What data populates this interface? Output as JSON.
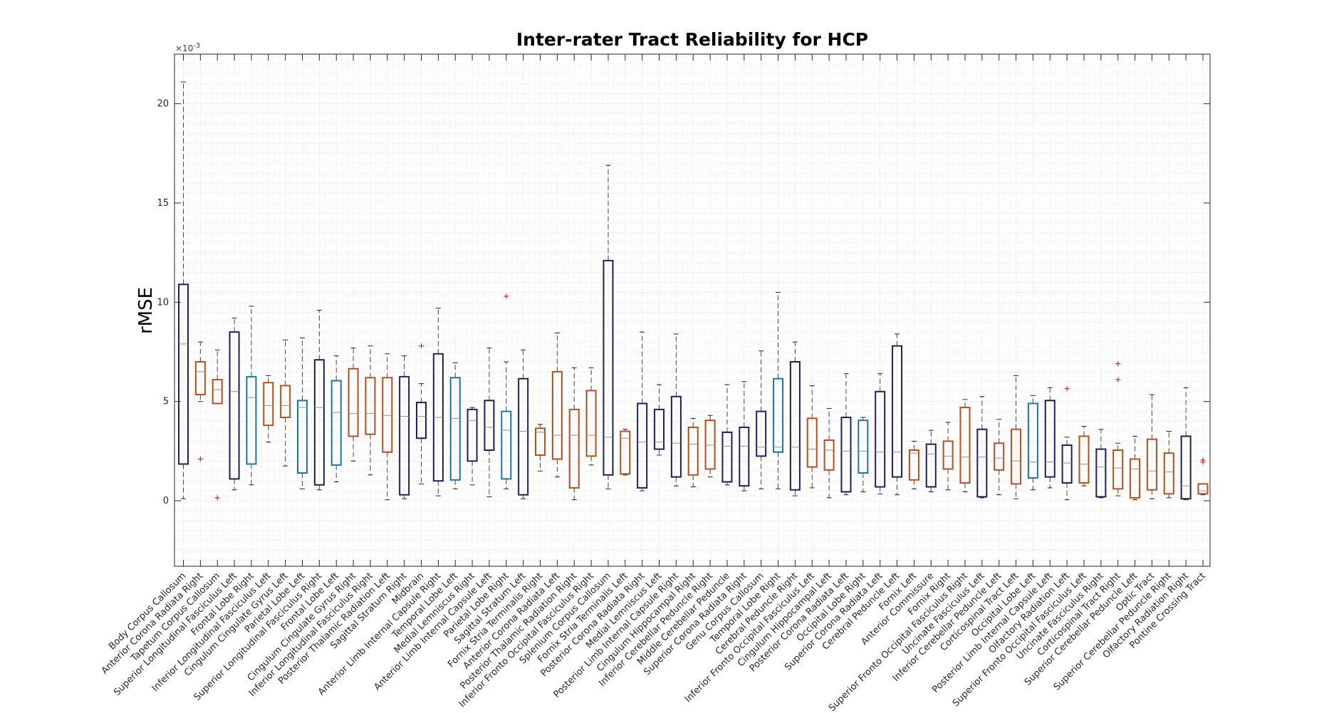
{
  "chart_data": {
    "type": "box",
    "title": "Inter-rater Tract Reliability for HCP",
    "xlabel": "",
    "ylabel": "rMSE",
    "y_exponent_label": "×10",
    "y_exponent": "-3",
    "ylim": [
      -3.3,
      22.5
    ],
    "yticks": [
      0,
      5,
      10,
      15,
      20
    ],
    "ytick_labels": [
      "0",
      "5",
      "10",
      "15",
      "20"
    ],
    "grid": "minor",
    "colors": {
      "navy": "#1f1f5e",
      "orange": "#b8501a",
      "teal": "#1a78a8",
      "outlier": "#e02020",
      "median": "#909090",
      "whisker": "#444444"
    },
    "categories": [
      {
        "label": "Body Corpus Callosum",
        "color": "navy",
        "wlo": 0.1,
        "q1": 1.85,
        "med": 7.9,
        "q3": 10.9,
        "whi": 21.1,
        "out": []
      },
      {
        "label": "Anterior Corona Radiata Right",
        "color": "orange",
        "wlo": 5.0,
        "q1": 5.35,
        "med": 6.5,
        "q3": 7.0,
        "whi": 8.0,
        "out": [
          2.1
        ]
      },
      {
        "label": "Tapetum Corpus Callosum",
        "color": "orange",
        "wlo": 4.9,
        "q1": 4.9,
        "med": 5.6,
        "q3": 6.1,
        "whi": 7.6,
        "out": [
          0.15
        ]
      },
      {
        "label": "Superior Longitudinal Fasciculus Left",
        "color": "navy",
        "wlo": 0.55,
        "q1": 1.1,
        "med": 5.5,
        "q3": 8.5,
        "whi": 9.2,
        "out": []
      },
      {
        "label": "Frontal Lobe Right",
        "color": "teal",
        "wlo": 0.8,
        "q1": 1.85,
        "med": 5.2,
        "q3": 6.25,
        "whi": 9.8,
        "out": []
      },
      {
        "label": "Inferior Longitudinal Fasciculus Left",
        "color": "orange",
        "wlo": 2.95,
        "q1": 3.8,
        "med": 4.8,
        "q3": 5.95,
        "whi": 6.3,
        "out": []
      },
      {
        "label": "Cingulum Cingulate Gyrus Left",
        "color": "orange",
        "wlo": 1.75,
        "q1": 4.2,
        "med": 4.8,
        "q3": 5.8,
        "whi": 8.1,
        "out": []
      },
      {
        "label": "Parietal Lobe Left",
        "color": "teal",
        "wlo": 0.6,
        "q1": 1.4,
        "med": 4.7,
        "q3": 5.05,
        "whi": 8.2,
        "out": []
      },
      {
        "label": "Superior Longitudinal Fasciculus Right",
        "color": "navy",
        "wlo": 0.55,
        "q1": 0.8,
        "med": 4.7,
        "q3": 7.1,
        "whi": 9.6,
        "out": []
      },
      {
        "label": "Frontal Lobe Left",
        "color": "teal",
        "wlo": 0.95,
        "q1": 1.8,
        "med": 4.45,
        "q3": 6.05,
        "whi": 7.3,
        "out": []
      },
      {
        "label": "Cingulum Cingulate Gyrus Right",
        "color": "orange",
        "wlo": 2.0,
        "q1": 3.25,
        "med": 4.4,
        "q3": 6.65,
        "whi": 7.7,
        "out": []
      },
      {
        "label": "Inferior Longitudinal Fasciculus Right",
        "color": "orange",
        "wlo": 1.3,
        "q1": 3.35,
        "med": 4.4,
        "q3": 6.2,
        "whi": 7.8,
        "out": []
      },
      {
        "label": "Posterior Thalamic Radiation Left",
        "color": "orange",
        "wlo": 0.05,
        "q1": 2.45,
        "med": 4.3,
        "q3": 6.2,
        "whi": 7.4,
        "out": []
      },
      {
        "label": "Sagittal Stratum Right",
        "color": "navy",
        "wlo": 0.1,
        "q1": 0.3,
        "med": 4.25,
        "q3": 6.25,
        "whi": 7.3,
        "out": []
      },
      {
        "label": "Midbrain",
        "color": "navy",
        "wlo": 0.85,
        "q1": 3.15,
        "med": 4.25,
        "q3": 4.95,
        "whi": 5.9,
        "out": [
          7.8
        ]
      },
      {
        "label": "Anterior Limb Internal Capsule Right",
        "color": "navy",
        "wlo": 0.25,
        "q1": 1.0,
        "med": 4.2,
        "q3": 7.4,
        "whi": 9.7,
        "out": []
      },
      {
        "label": "Temporal Lobe Left",
        "color": "teal",
        "wlo": 0.6,
        "q1": 1.05,
        "med": 4.15,
        "q3": 6.2,
        "whi": 6.95,
        "out": []
      },
      {
        "label": "Medial Lemniscus Right",
        "color": "navy",
        "wlo": 0.8,
        "q1": 2.0,
        "med": 4.05,
        "q3": 4.6,
        "whi": 4.7,
        "out": []
      },
      {
        "label": "Anterior Limb Internal Capsule Left",
        "color": "navy",
        "wlo": 0.2,
        "q1": 2.55,
        "med": 3.7,
        "q3": 5.05,
        "whi": 7.7,
        "out": []
      },
      {
        "label": "Parietal Lobe Right",
        "color": "teal",
        "wlo": 0.6,
        "q1": 1.1,
        "med": 3.55,
        "q3": 4.5,
        "whi": 7.0,
        "out": [
          10.3
        ]
      },
      {
        "label": "Sagittal Stratum Left",
        "color": "navy",
        "wlo": 0.1,
        "q1": 0.3,
        "med": 3.5,
        "q3": 6.15,
        "whi": 7.6,
        "out": []
      },
      {
        "label": "Fornix Stria Terminalis Right",
        "color": "orange",
        "wlo": 1.5,
        "q1": 2.3,
        "med": 3.45,
        "q3": 3.65,
        "whi": 3.85,
        "out": []
      },
      {
        "label": "Anterior Corona Radiata Left",
        "color": "orange",
        "wlo": 1.2,
        "q1": 2.1,
        "med": 3.3,
        "q3": 6.5,
        "whi": 8.45,
        "out": []
      },
      {
        "label": "Posterior Thalamic Radiation Right",
        "color": "orange",
        "wlo": 0.05,
        "q1": 0.65,
        "med": 3.3,
        "q3": 4.6,
        "whi": 6.7,
        "out": []
      },
      {
        "label": "Inferior Fronto Occipital Fasciculus Right",
        "color": "orange",
        "wlo": 1.8,
        "q1": 2.25,
        "med": 3.3,
        "q3": 5.55,
        "whi": 6.7,
        "out": []
      },
      {
        "label": "Splenium Corpus Callosum",
        "color": "navy",
        "wlo": 0.6,
        "q1": 1.3,
        "med": 3.2,
        "q3": 12.1,
        "whi": 16.9,
        "out": []
      },
      {
        "label": "Fornix Stria Terminalis Left",
        "color": "orange",
        "wlo": 1.3,
        "q1": 1.35,
        "med": 3.15,
        "q3": 3.5,
        "whi": 3.6,
        "out": []
      },
      {
        "label": "Posterior Corona Radiata Right",
        "color": "navy",
        "wlo": 0.5,
        "q1": 0.65,
        "med": 2.95,
        "q3": 4.9,
        "whi": 8.5,
        "out": []
      },
      {
        "label": "Medial Lemniscus Left",
        "color": "navy",
        "wlo": 2.3,
        "q1": 2.6,
        "med": 2.95,
        "q3": 4.6,
        "whi": 5.85,
        "out": []
      },
      {
        "label": "Posterior Limb Internal Capsule Right",
        "color": "navy",
        "wlo": 0.75,
        "q1": 1.2,
        "med": 2.9,
        "q3": 5.25,
        "whi": 8.4,
        "out": []
      },
      {
        "label": "Cingulum Hippocampal Right",
        "color": "orange",
        "wlo": 0.7,
        "q1": 1.3,
        "med": 2.85,
        "q3": 3.7,
        "whi": 4.15,
        "out": []
      },
      {
        "label": "Inferior Cerebellar Peduncle Right",
        "color": "orange",
        "wlo": 1.2,
        "q1": 1.6,
        "med": 2.8,
        "q3": 4.05,
        "whi": 4.3,
        "out": []
      },
      {
        "label": "Middle Cerebellar Peduncle",
        "color": "navy",
        "wlo": 0.8,
        "q1": 0.95,
        "med": 2.75,
        "q3": 3.45,
        "whi": 5.85,
        "out": []
      },
      {
        "label": "Superior Corona Radiata Right",
        "color": "navy",
        "wlo": 0.5,
        "q1": 0.75,
        "med": 2.75,
        "q3": 3.7,
        "whi": 6.0,
        "out": []
      },
      {
        "label": "Genu Corpus Callosum",
        "color": "navy",
        "wlo": 0.6,
        "q1": 2.25,
        "med": 2.7,
        "q3": 4.5,
        "whi": 7.55,
        "out": []
      },
      {
        "label": "Temporal Lobe Right",
        "color": "teal",
        "wlo": 0.6,
        "q1": 2.45,
        "med": 2.7,
        "q3": 6.15,
        "whi": 10.5,
        "out": []
      },
      {
        "label": "Cerebral Peduncle Right",
        "color": "navy",
        "wlo": 0.25,
        "q1": 0.55,
        "med": 2.7,
        "q3": 7.0,
        "whi": 8.0,
        "out": []
      },
      {
        "label": "Inferior Fronto Occipital Fasciculus Left",
        "color": "orange",
        "wlo": 0.65,
        "q1": 1.7,
        "med": 2.6,
        "q3": 4.15,
        "whi": 5.8,
        "out": []
      },
      {
        "label": "Cingulum Hippocampal Left",
        "color": "orange",
        "wlo": 0.15,
        "q1": 1.55,
        "med": 2.55,
        "q3": 3.05,
        "whi": 4.65,
        "out": []
      },
      {
        "label": "Posterior Corona Radiata Left",
        "color": "navy",
        "wlo": 0.3,
        "q1": 0.45,
        "med": 2.5,
        "q3": 4.2,
        "whi": 6.4,
        "out": []
      },
      {
        "label": "Occipital Lobe Right",
        "color": "teal",
        "wlo": 0.45,
        "q1": 1.4,
        "med": 2.5,
        "q3": 4.05,
        "whi": 4.2,
        "out": []
      },
      {
        "label": "Superior Corona Radiata Left",
        "color": "navy",
        "wlo": 0.35,
        "q1": 0.7,
        "med": 2.45,
        "q3": 5.5,
        "whi": 6.4,
        "out": []
      },
      {
        "label": "Cerebral Peduncle Left",
        "color": "navy",
        "wlo": 0.3,
        "q1": 1.2,
        "med": 2.45,
        "q3": 7.8,
        "whi": 8.4,
        "out": []
      },
      {
        "label": "Fornix Left",
        "color": "orange",
        "wlo": 0.6,
        "q1": 1.05,
        "med": 2.4,
        "q3": 2.55,
        "whi": 3.0,
        "out": []
      },
      {
        "label": "Anterior Commissure",
        "color": "navy",
        "wlo": 0.45,
        "q1": 0.7,
        "med": 2.35,
        "q3": 2.85,
        "whi": 3.55,
        "out": []
      },
      {
        "label": "Fornix Right",
        "color": "orange",
        "wlo": 0.55,
        "q1": 1.6,
        "med": 2.25,
        "q3": 3.0,
        "whi": 3.95,
        "out": []
      },
      {
        "label": "Superior Fronto Occipital Fasciculus Right",
        "color": "orange",
        "wlo": 0.45,
        "q1": 0.9,
        "med": 2.2,
        "q3": 4.7,
        "whi": 5.1,
        "out": []
      },
      {
        "label": "Uncinate Fasciculus Left",
        "color": "navy",
        "wlo": 0.15,
        "q1": 0.2,
        "med": 2.2,
        "q3": 3.6,
        "whi": 5.25,
        "out": []
      },
      {
        "label": "Inferior Cerebellar Peduncle Left",
        "color": "orange",
        "wlo": 0.3,
        "q1": 1.55,
        "med": 2.15,
        "q3": 2.9,
        "whi": 4.1,
        "out": []
      },
      {
        "label": "Corticospinal Tract Left",
        "color": "orange",
        "wlo": 0.1,
        "q1": 0.85,
        "med": 2.0,
        "q3": 3.6,
        "whi": 6.3,
        "out": []
      },
      {
        "label": "Occipital Lobe Left",
        "color": "teal",
        "wlo": 0.55,
        "q1": 1.15,
        "med": 1.95,
        "q3": 4.9,
        "whi": 5.3,
        "out": []
      },
      {
        "label": "Posterior Limb Internal Capsule Left",
        "color": "navy",
        "wlo": 0.65,
        "q1": 1.2,
        "med": 1.95,
        "q3": 5.05,
        "whi": 5.7,
        "out": []
      },
      {
        "label": "Olfactory Radiation Left",
        "color": "navy",
        "wlo": 0.05,
        "q1": 0.9,
        "med": 1.9,
        "q3": 2.8,
        "whi": 3.2,
        "out": [
          5.65
        ]
      },
      {
        "label": "Superior Fronto Occipital Fasciculus Left",
        "color": "orange",
        "wlo": 0.75,
        "q1": 0.9,
        "med": 1.85,
        "q3": 3.25,
        "whi": 3.75,
        "out": []
      },
      {
        "label": "Uncinate Fasciculus Right",
        "color": "navy",
        "wlo": 0.15,
        "q1": 0.2,
        "med": 1.7,
        "q3": 2.6,
        "whi": 3.6,
        "out": []
      },
      {
        "label": "Corticospinal Tract Right",
        "color": "orange",
        "wlo": 0.25,
        "q1": 0.6,
        "med": 1.65,
        "q3": 2.55,
        "whi": 2.9,
        "out": [
          6.1,
          6.9
        ]
      },
      {
        "label": "Superior Cerebellar Peduncle Left",
        "color": "orange",
        "wlo": 0.05,
        "q1": 0.15,
        "med": 1.6,
        "q3": 2.1,
        "whi": 3.25,
        "out": []
      },
      {
        "label": "Optic Tract",
        "color": "orange",
        "wlo": 0.1,
        "q1": 0.55,
        "med": 1.5,
        "q3": 3.1,
        "whi": 5.35,
        "out": []
      },
      {
        "label": "Superior Cerebellar Peduncle Right",
        "color": "orange",
        "wlo": 0.15,
        "q1": 0.35,
        "med": 1.45,
        "q3": 2.4,
        "whi": 3.5,
        "out": []
      },
      {
        "label": "Olfactory Radiation Right",
        "color": "navy",
        "wlo": 0.05,
        "q1": 0.1,
        "med": 0.75,
        "q3": 3.25,
        "whi": 5.7,
        "out": []
      },
      {
        "label": "Pontine Crossing Tract",
        "color": "orange",
        "wlo": 0.3,
        "q1": 0.35,
        "med": 0.5,
        "q3": 0.85,
        "whi": 0.85,
        "out": [
          1.95,
          2.05
        ]
      }
    ]
  }
}
